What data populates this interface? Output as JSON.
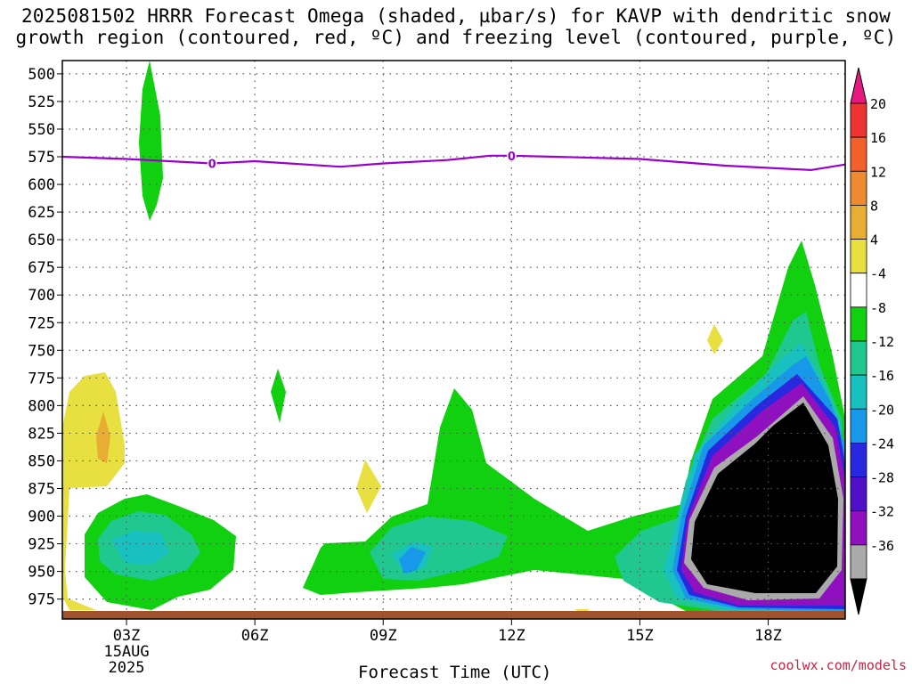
{
  "title": {
    "line1": "2025081502 HRRR Forecast Omega (shaded, µbar/s) for KAVP with dendritic snow",
    "line2": "growth region (contoured, red, ºC) and freezing level (contoured, purple, ºC)"
  },
  "credit": "coolwx.com/models",
  "chart_data": {
    "type": "heatmap",
    "xlabel": "Forecast Time (UTC)",
    "x_ticks": [
      "03Z",
      "06Z",
      "09Z",
      "12Z",
      "15Z",
      "18Z"
    ],
    "x_tick_hours": [
      3,
      6,
      9,
      12,
      15,
      18
    ],
    "x_date_labels": [
      "15AUG",
      "2025"
    ],
    "xlim_hours": [
      1.5,
      19.8
    ],
    "y_ticks": [
      500,
      525,
      550,
      575,
      600,
      625,
      650,
      675,
      700,
      725,
      750,
      775,
      800,
      825,
      850,
      875,
      900,
      925,
      950,
      975
    ],
    "ylim_mb": [
      488,
      993
    ],
    "y_scale": "pressure (inverted)",
    "grid": true,
    "colorbar": {
      "labels": [
        "20",
        "16",
        "12",
        "8",
        "4",
        "-4",
        "-8",
        "-12",
        "-16",
        "-20",
        "-24",
        "-28",
        "-32",
        "-36"
      ],
      "colors": [
        "#e81880",
        "#ee3333",
        "#f3602c",
        "#ee8a30",
        "#e8ae34",
        "#e8e040",
        "#ffffff",
        "#10d010",
        "#20c890",
        "#18c0c0",
        "#1898e8",
        "#2828e0",
        "#5010c8",
        "#9010c0",
        "#aaaaaa",
        "#000000"
      ],
      "levels_units": "µbar/s"
    },
    "freezing_level": {
      "label": "0",
      "hours": [
        1.5,
        3,
        5,
        6,
        8,
        9,
        10.5,
        11.5,
        12,
        13,
        15,
        17,
        19,
        19.8
      ],
      "mb": [
        575,
        577,
        581,
        579,
        584,
        581,
        578,
        574,
        574,
        575,
        577,
        583,
        587,
        582
      ]
    },
    "omega_regions": [
      {
        "name": "descent-4-8-early",
        "level": "4 to 8"
      },
      {
        "name": "ascent-cells",
        "level": "-4 to -16"
      },
      {
        "name": "strong-ascent-18z",
        "level": "below -36"
      }
    ]
  }
}
